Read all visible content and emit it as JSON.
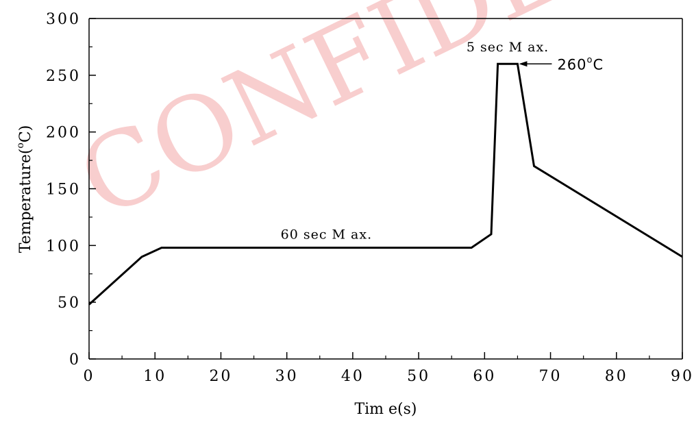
{
  "watermark": "CONFIDENTIAL",
  "chart_data": {
    "type": "line",
    "xlabel": "Tim e(s)",
    "ylabel": "Temperature(",
    "ylabel_sup": "o",
    "ylabel_unit": "C)",
    "xlim": [
      0,
      90
    ],
    "ylim": [
      0,
      300
    ],
    "xticks": [
      0,
      10,
      20,
      30,
      40,
      50,
      60,
      70,
      80,
      90
    ],
    "yticks": [
      0,
      50,
      100,
      150,
      200,
      250,
      300
    ],
    "grid": false,
    "line_color": "#000000",
    "watermark_color": "#f7c6c6",
    "series": [
      {
        "x": [
          0,
          8,
          11,
          58,
          61,
          62,
          65,
          67.5,
          90
        ],
        "y": [
          48,
          90,
          98,
          98,
          110,
          260,
          260,
          170,
          90
        ]
      }
    ],
    "annotations": [
      {
        "text": "60 sec M ax.",
        "x": 36,
        "y": 106
      },
      {
        "text": "5 sec M ax.",
        "x": 63.5,
        "y": 271
      },
      {
        "text": "260",
        "sup": "o",
        "unit": "C",
        "x": 63.5,
        "y": 260
      }
    ]
  }
}
